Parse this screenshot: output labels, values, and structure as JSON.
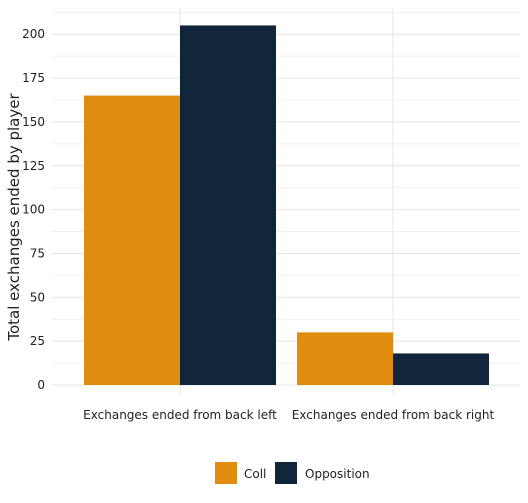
{
  "chart_data": {
    "type": "bar",
    "title": "",
    "xlabel": "",
    "ylabel": "Total exchanges ended by player",
    "categories": [
      "Exchanges ended from back left",
      "Exchanges ended from back right"
    ],
    "series": [
      {
        "name": "Coll",
        "values": [
          165,
          30
        ],
        "color": "#E08C0E"
      },
      {
        "name": "Opposition",
        "values": [
          205,
          18
        ],
        "color": "#10253A"
      }
    ],
    "ylim": [
      0,
      215
    ],
    "yticks": [
      0,
      25,
      50,
      75,
      100,
      125,
      150,
      175,
      200
    ],
    "grid": true,
    "legend_position": "bottom"
  }
}
